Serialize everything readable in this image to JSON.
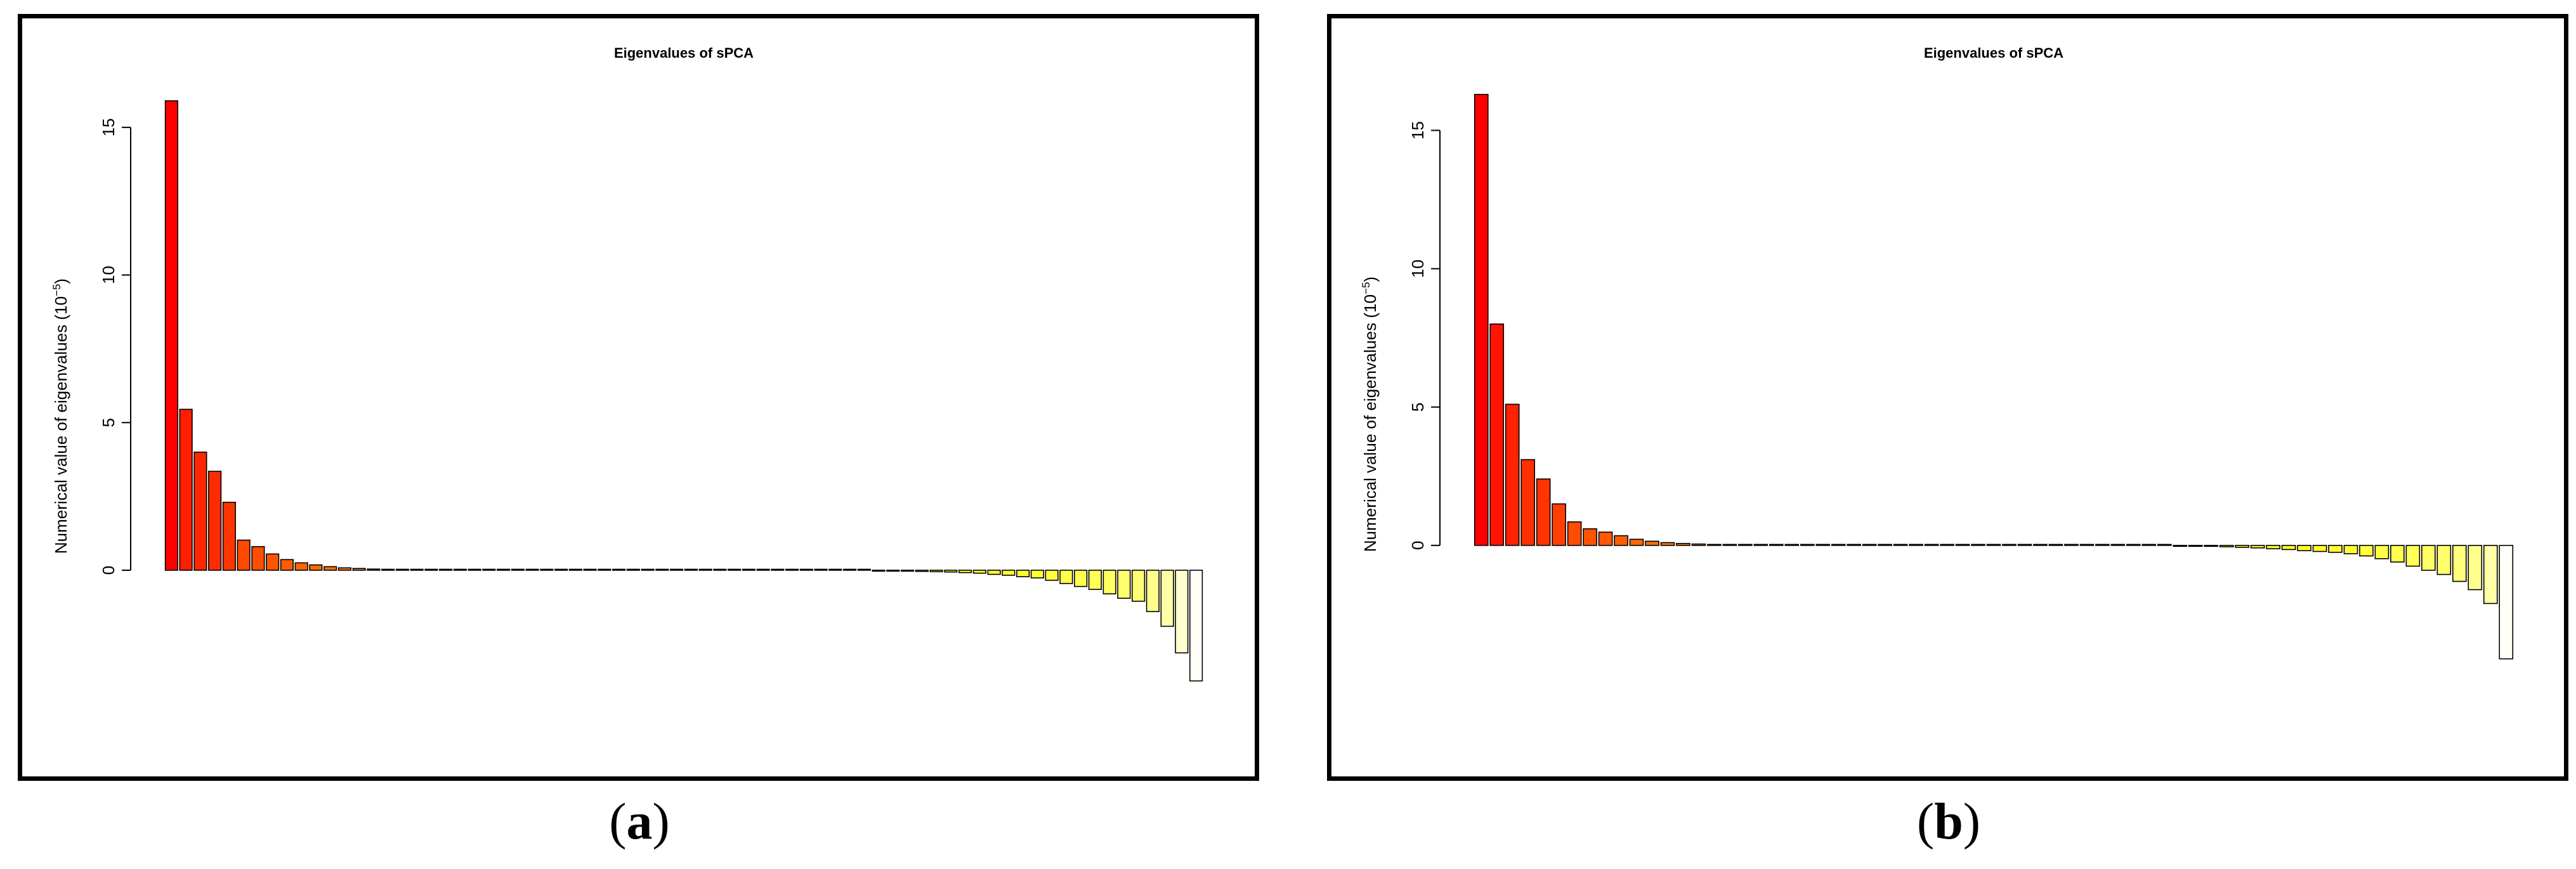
{
  "chart_data": [
    {
      "type": "bar",
      "title": "Eigenvalues of sPCA",
      "ylabel": "Numerical value of eigenvalues (10",
      "ylabel_exponent": "−5",
      "ylabel_close": ")",
      "yticks": [
        "0",
        "5",
        "10",
        "15"
      ],
      "ylim": [
        -5.2,
        16.5
      ],
      "grid": false,
      "values": [
        15.9,
        5.45,
        4.0,
        3.35,
        2.3,
        1.02,
        0.8,
        0.55,
        0.36,
        0.25,
        0.18,
        0.12,
        0.08,
        0.06,
        0.04,
        0.02,
        0.015,
        0.012,
        0.01,
        0.008,
        0.007,
        0.006,
        0.005,
        0.005,
        0.004,
        0.004,
        0.003,
        0.003,
        0.002,
        0.002,
        0.002,
        0.001,
        0.001,
        0.001,
        0.001,
        0.0,
        0.0,
        0.0,
        0.0,
        0.0,
        0.0,
        0.0,
        0.0,
        0.0,
        0.0,
        0.0,
        0.0,
        0.0,
        0.0,
        -0.001,
        -0.02,
        -0.03,
        -0.04,
        -0.05,
        -0.06,
        -0.08,
        -0.1,
        -0.14,
        -0.17,
        -0.22,
        -0.26,
        -0.34,
        -0.45,
        -0.55,
        -0.65,
        -0.8,
        -0.95,
        -1.05,
        -1.4,
        -1.9,
        -2.8,
        -3.75
      ]
    },
    {
      "type": "bar",
      "title": "Eigenvalues of sPCA",
      "ylabel": "Numerical value of eigenvalues (10",
      "ylabel_exponent": "−5",
      "ylabel_close": ")",
      "yticks": [
        "0",
        "5",
        "10",
        "15"
      ],
      "ylim": [
        -6.4,
        16.8
      ],
      "grid": false,
      "values": [
        16.3,
        8.0,
        5.1,
        3.1,
        2.4,
        1.5,
        0.85,
        0.6,
        0.48,
        0.35,
        0.22,
        0.15,
        0.1,
        0.07,
        0.05,
        0.03,
        0.02,
        0.015,
        0.01,
        0.008,
        0.006,
        0.005,
        0.004,
        0.004,
        0.003,
        0.003,
        0.002,
        0.002,
        0.002,
        0.001,
        0.001,
        0.001,
        0.001,
        0.0,
        0.0,
        0.0,
        0.0,
        0.0,
        0.0,
        0.0,
        0.0,
        0.0,
        0.0,
        0.0,
        0.0,
        -0.001,
        -0.02,
        -0.03,
        -0.05,
        -0.07,
        -0.09,
        -0.12,
        -0.15,
        -0.19,
        -0.22,
        -0.25,
        -0.3,
        -0.38,
        -0.48,
        -0.6,
        -0.75,
        -0.9,
        -1.05,
        -1.3,
        -1.6,
        -2.1,
        -4.1
      ]
    }
  ],
  "captions": [
    "(a)",
    "(b)"
  ],
  "colors": {
    "positive_max": "#ff0000",
    "mid": "#ffff00",
    "negative_min": "#fffff8",
    "stroke": "#000000"
  }
}
